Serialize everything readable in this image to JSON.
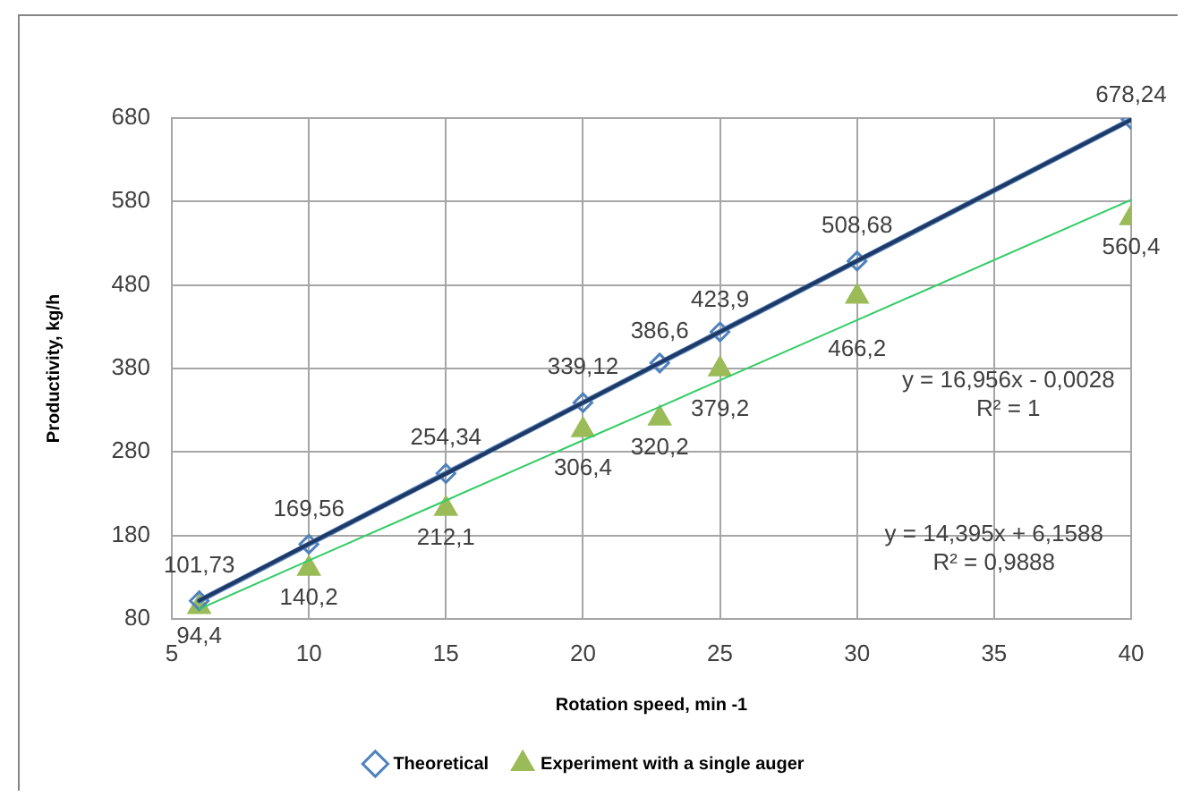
{
  "chart_data": {
    "type": "line",
    "xlabel": "Rotation speed, min -1",
    "ylabel": "Productivity, kg/h",
    "x": [
      6,
      10,
      15,
      20,
      22.8,
      25,
      30,
      40
    ],
    "series": [
      {
        "name": "Theoretical",
        "type": "line",
        "color": "#4f81bd",
        "marker": "diamond",
        "values": [
          101.73,
          169.56,
          254.34,
          339.12,
          386.6,
          423.9,
          508.68,
          678.24
        ],
        "value_labels": [
          "101,73",
          "169,56",
          "254,34",
          "339,12",
          "386,6",
          "423,9",
          "508,68",
          "678,24"
        ]
      },
      {
        "name": "Experiment with a single auger",
        "type": "scatter",
        "color": "#9bbb59",
        "marker": "triangle",
        "values": [
          94.4,
          140.2,
          212.1,
          306.4,
          320.2,
          379.2,
          466.2,
          560.4
        ],
        "value_labels": [
          "94,4",
          "140,2",
          "212,1",
          "306,4",
          "320,2",
          "379,2",
          "466,2",
          "560,4"
        ]
      },
      {
        "type": "line",
        "color": "#1f3864",
        "marker": "none",
        "values": [
          102,
          170,
          254,
          339,
          387,
          424,
          509,
          678
        ]
      },
      {
        "type": "line",
        "color": "#33cc66",
        "marker": "none",
        "values": [
          92,
          150,
          222,
          294,
          334,
          366,
          438,
          582
        ]
      }
    ],
    "xlim": [
      5,
      40
    ],
    "xticks": [
      5,
      10,
      15,
      20,
      25,
      30,
      35,
      40
    ],
    "ylim": [
      80,
      680
    ],
    "yticks": [
      80,
      180,
      280,
      380,
      480,
      580,
      680
    ],
    "grid": true,
    "legend": "bottom",
    "annotations": [
      "y = 16,956x - 0,0028\nR² = 1",
      "y = 14,395x + 6,1588\nR² = 0,9888"
    ]
  }
}
